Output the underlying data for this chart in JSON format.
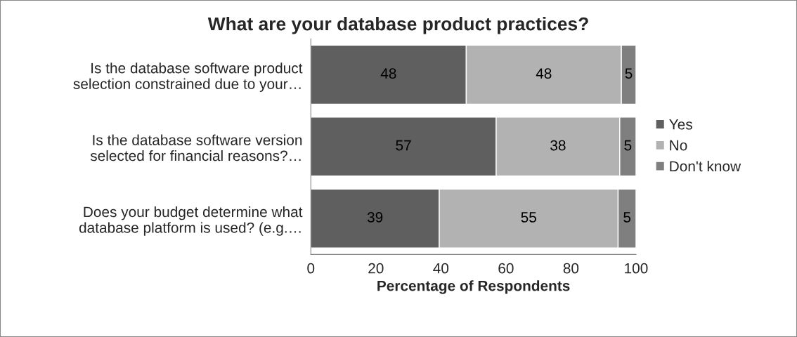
{
  "chart_data": {
    "type": "bar",
    "orientation": "horizontal",
    "stacked": true,
    "title": "What are your database product practices?",
    "xlabel": "Percentage of Respondents",
    "categories": [
      "Is the database software product\nselection constrained due to your…",
      "Is the database software version\nselected for financial reasons?…",
      "Does your budget determine what\ndatabase platform is used? (e.g.…"
    ],
    "series": [
      {
        "name": "Yes",
        "color": "#5f5f5f",
        "values": [
          47.8,
          57,
          39.5
        ],
        "value_labels": [
          "48",
          "57",
          "39"
        ]
      },
      {
        "name": "No",
        "color": "#b2b2b2",
        "values": [
          47.7,
          38,
          55
        ],
        "value_labels": [
          "48",
          "38",
          "55"
        ]
      },
      {
        "name": "Don't know",
        "color": "#7f7f7f",
        "values": [
          4.5,
          5,
          5.5
        ],
        "value_labels": [
          "5",
          "5",
          "5"
        ]
      }
    ],
    "xlim": [
      0,
      100
    ],
    "xticks": [
      0,
      20,
      40,
      60,
      80,
      100
    ],
    "grid": false,
    "legend": "right"
  }
}
